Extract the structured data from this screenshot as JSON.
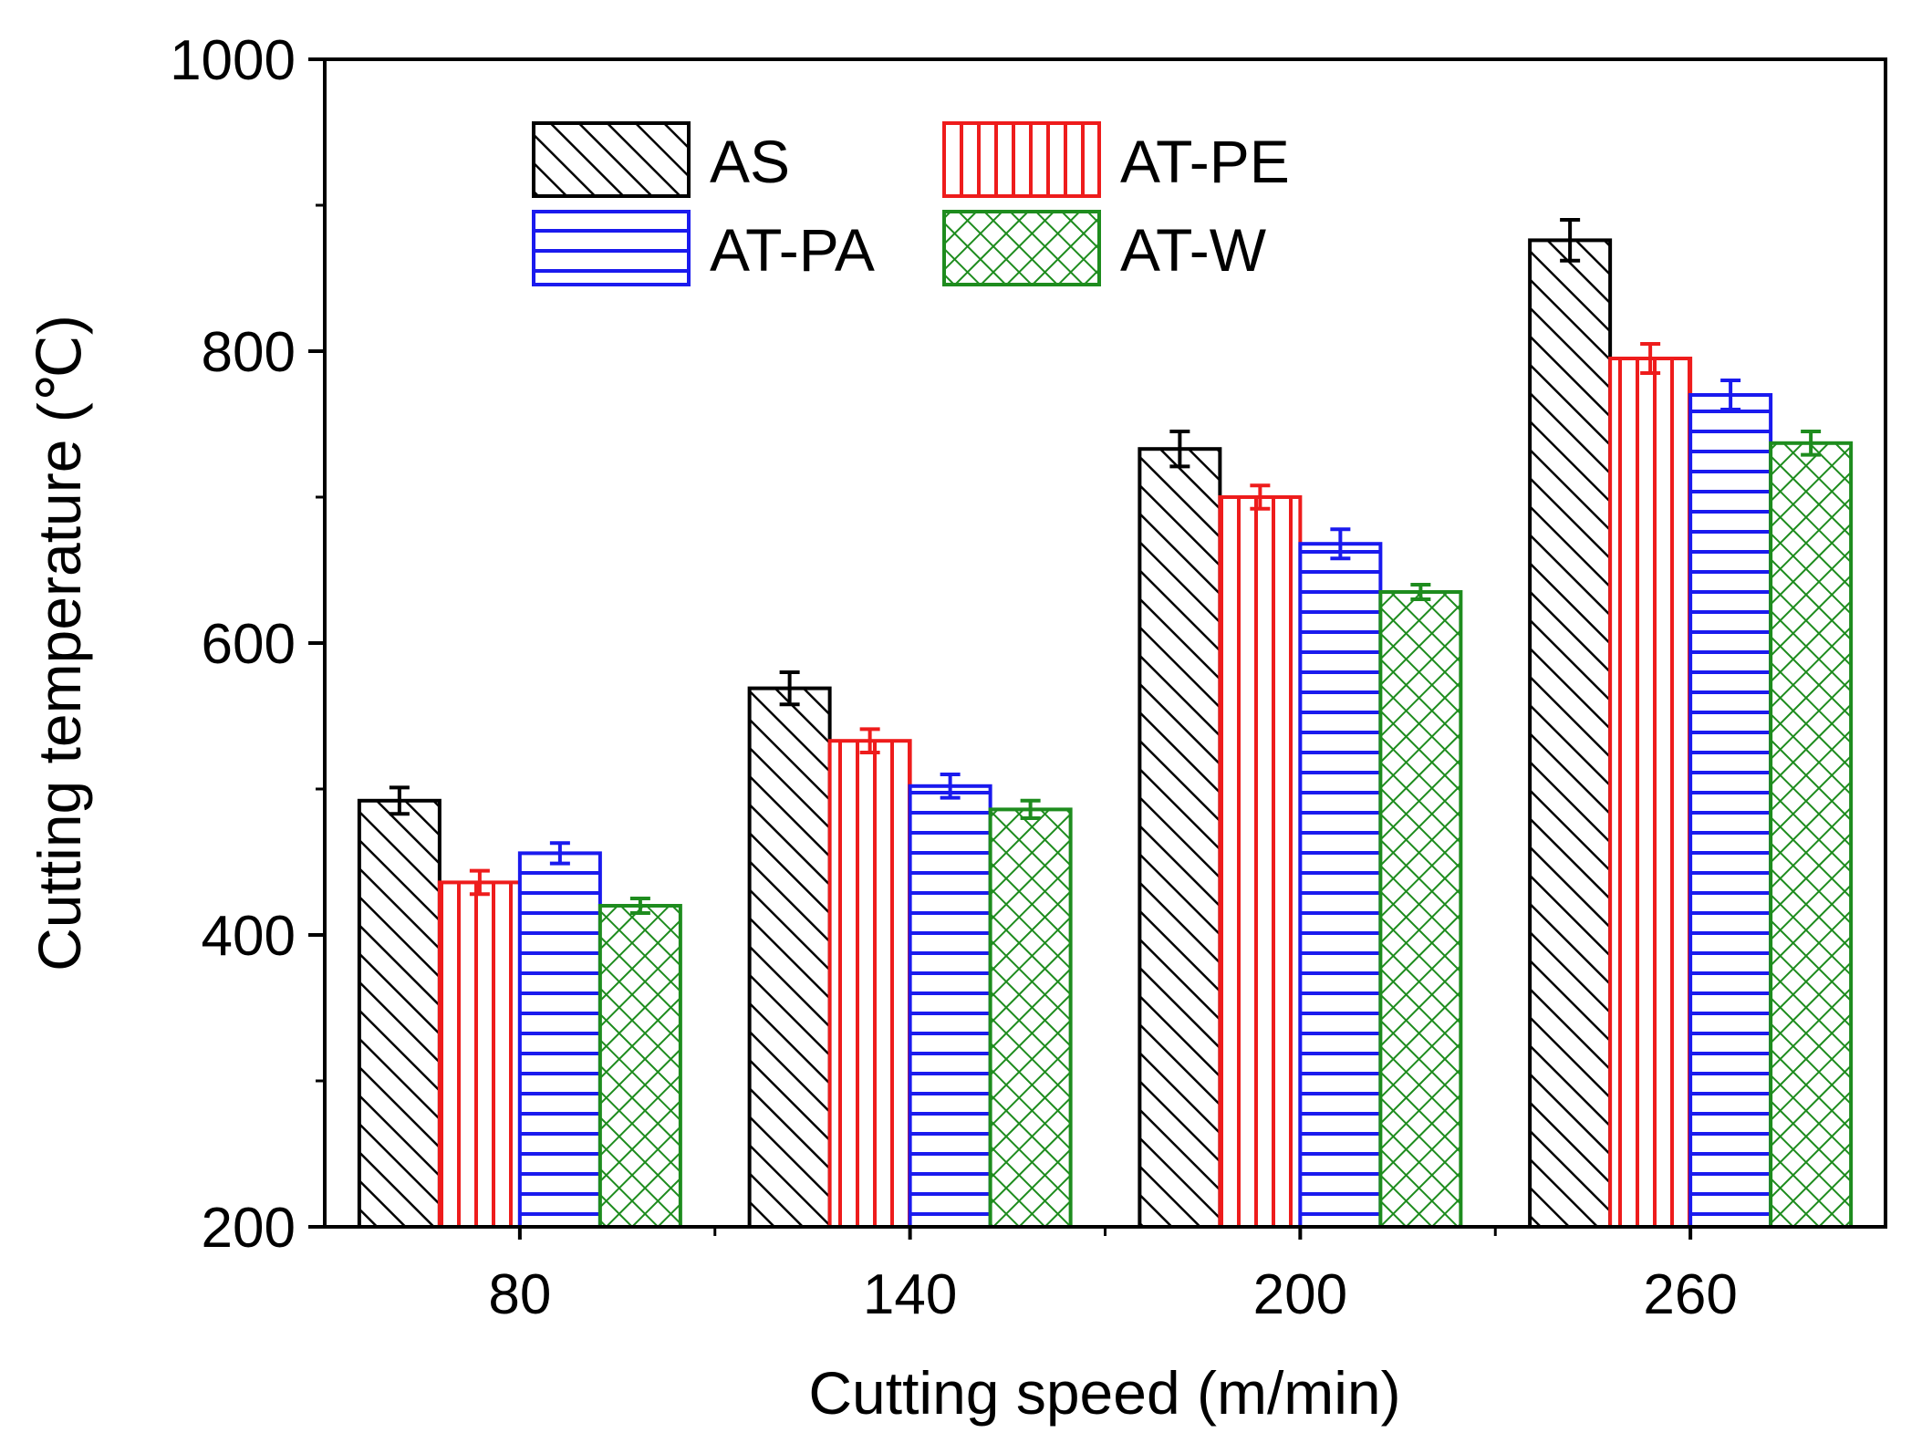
{
  "chart_data": {
    "type": "bar",
    "title": "",
    "xlabel": "Cutting speed (m/min)",
    "ylabel": "Cutting temperature (℃)",
    "ylim": [
      200,
      1000
    ],
    "yticks": [
      "200",
      "400",
      "600",
      "800",
      "1000"
    ],
    "categories": [
      "80",
      "140",
      "200",
      "260"
    ],
    "legend_position": "top-left",
    "series": [
      {
        "name": "AS",
        "color": "#000000",
        "pattern": "diagonal",
        "values": [
          492,
          569,
          733,
          876
        ],
        "errors": [
          9,
          11,
          12,
          14
        ]
      },
      {
        "name": "AT-PE",
        "color": "#ee1c1c",
        "pattern": "vertical",
        "values": [
          436,
          533,
          700,
          795
        ],
        "errors": [
          8,
          8,
          8,
          10
        ]
      },
      {
        "name": "AT-PA",
        "color": "#1a1aee",
        "pattern": "horizontal",
        "values": [
          456,
          502,
          668,
          770
        ],
        "errors": [
          7,
          8,
          10,
          10
        ]
      },
      {
        "name": "AT-W",
        "color": "#1e8c1e",
        "pattern": "crosshatch",
        "values": [
          420,
          486,
          635,
          737
        ],
        "errors": [
          5,
          6,
          5,
          8
        ]
      }
    ]
  }
}
